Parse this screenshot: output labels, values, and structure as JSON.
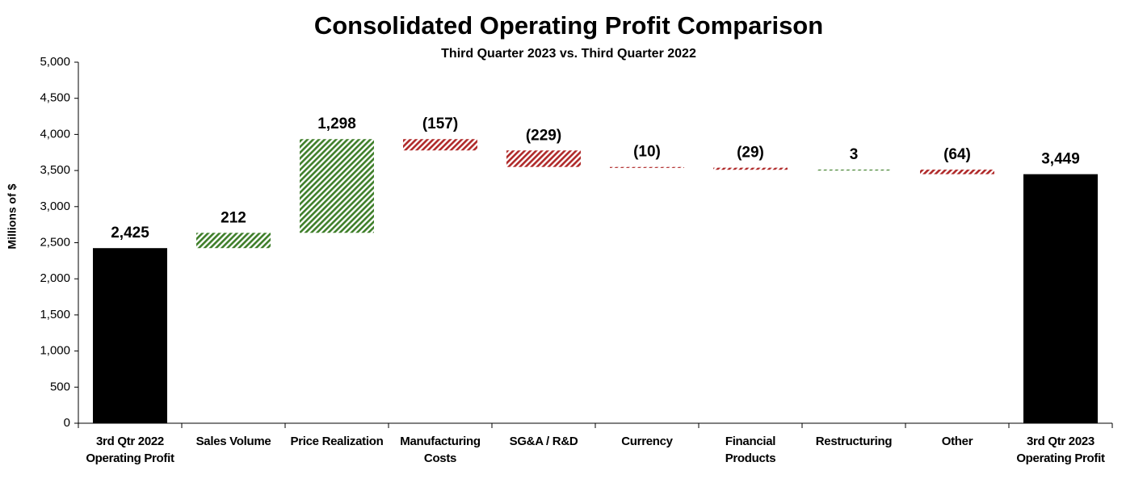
{
  "chart_data": {
    "type": "waterfall",
    "title": "Consolidated Operating Profit Comparison",
    "subtitle": "Third Quarter 2023 vs. Third Quarter 2022",
    "ylabel": "Millions of $",
    "categories": [
      "3rd Qtr 2022\nOperating Profit",
      "Sales Volume",
      "Price Realization",
      "Manufacturing\nCosts",
      "SG&A / R&D",
      "Currency",
      "Financial\nProducts",
      "Restructuring",
      "Other",
      "3rd Qtr 2023\nOperating Profit"
    ],
    "measure": [
      "total",
      "relative",
      "relative",
      "relative",
      "relative",
      "relative",
      "relative",
      "relative",
      "relative",
      "total"
    ],
    "values": [
      2425,
      212,
      1298,
      -157,
      -229,
      -10,
      -29,
      3,
      -64,
      3449
    ],
    "value_labels": [
      "2,425",
      "212",
      "1,298",
      "(157)",
      "(229)",
      "(10)",
      "(29)",
      "3",
      "(64)",
      "3,449"
    ],
    "colors": {
      "total": "#000000",
      "increase": "#3f7f2a",
      "decrease": "#b02a2a"
    },
    "ylim": [
      0,
      5000
    ],
    "yticks": [
      0,
      500,
      {
        "value": 1000,
        "label": "1,000"
      },
      {
        "value": 1500,
        "label": "1,500"
      },
      {
        "value": 2000,
        "label": "2,000"
      },
      {
        "value": 2500,
        "label": "2,500"
      },
      {
        "value": 3000,
        "label": "3,000"
      },
      {
        "value": 3500,
        "label": "3,500"
      },
      {
        "value": 4000,
        "label": "4,000"
      },
      {
        "value": 4500,
        "label": "4,500"
      },
      {
        "value": 5000,
        "label": "5,000"
      }
    ],
    "grid": false
  }
}
